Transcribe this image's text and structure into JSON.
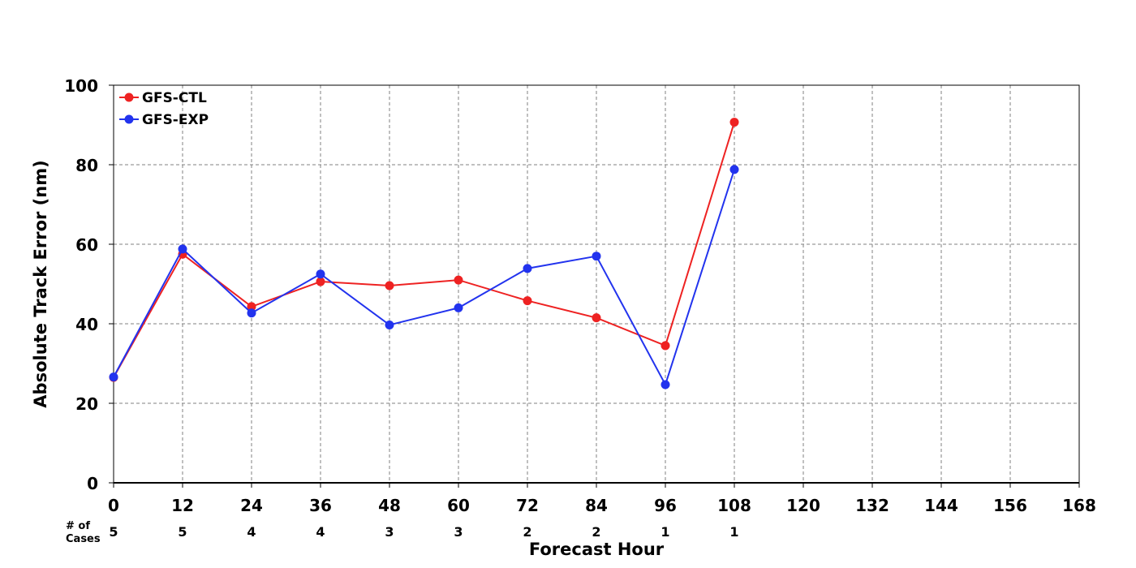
{
  "chart_data": {
    "type": "line",
    "xlabel": "Forecast Hour",
    "ylabel": "Absolute Track Error (nm)",
    "xlim": [
      0,
      168
    ],
    "ylim": [
      0,
      100
    ],
    "x_ticks": [
      0,
      12,
      24,
      36,
      48,
      60,
      72,
      84,
      96,
      108,
      120,
      132,
      144,
      156,
      168
    ],
    "y_ticks": [
      0,
      20,
      40,
      60,
      80,
      100
    ],
    "grid": true,
    "legend_position": "top-left",
    "x": [
      0,
      12,
      24,
      36,
      48,
      60,
      72,
      84,
      96,
      108
    ],
    "series": [
      {
        "name": "GFS-CTL",
        "color": "#ee2222",
        "values": [
          26.5,
          57.5,
          44.3,
          50.6,
          49.6,
          51.0,
          45.8,
          41.5,
          34.5,
          90.7
        ]
      },
      {
        "name": "GFS-EXP",
        "color": "#2233ee",
        "values": [
          26.6,
          58.8,
          42.7,
          52.5,
          39.7,
          44.0,
          53.9,
          57.0,
          24.7,
          78.8
        ]
      }
    ],
    "cases_label_line1": "# of",
    "cases_label_line2": "Cases",
    "cases": [
      5,
      5,
      4,
      4,
      3,
      3,
      2,
      2,
      1,
      1
    ]
  }
}
